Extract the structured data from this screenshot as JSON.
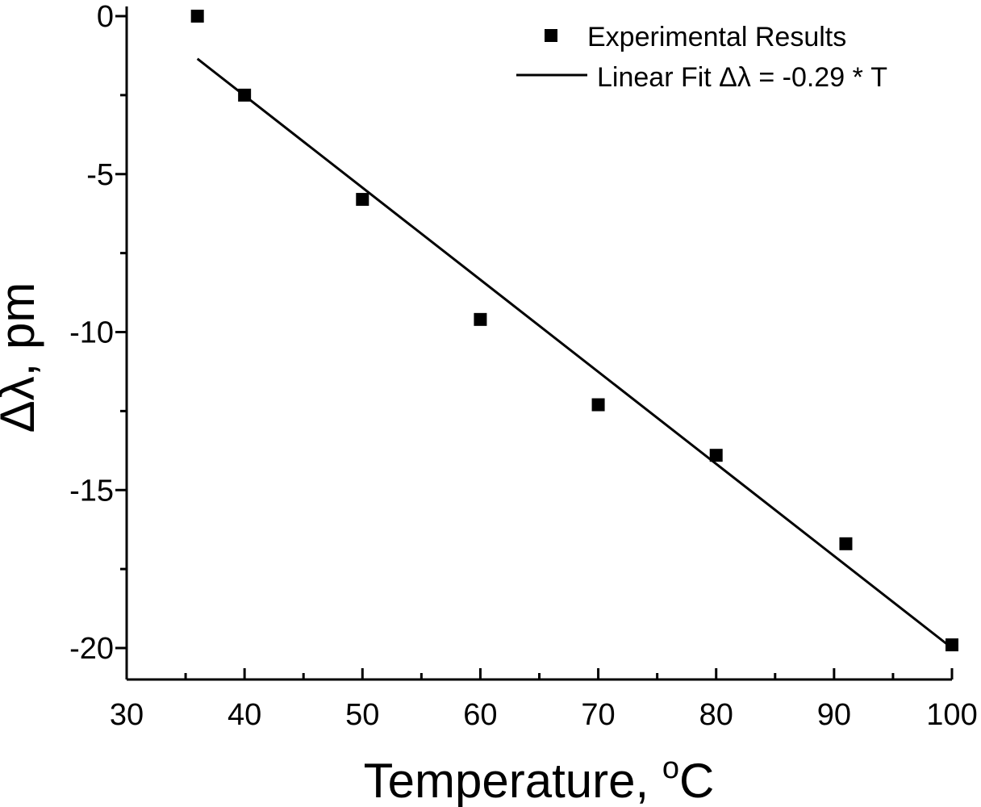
{
  "chart_data": {
    "type": "scatter",
    "title": "",
    "xlabel": "Temperature, ",
    "xlabel_unit_sup": "o",
    "xlabel_unit": "C",
    "ylabel": "Δλ, pm",
    "xlim": [
      30,
      100
    ],
    "ylim": [
      -21,
      0.5
    ],
    "xticks": [
      30,
      40,
      50,
      60,
      70,
      80,
      90,
      100
    ],
    "xtick_labels": [
      "30",
      "40",
      "50",
      "60",
      "70",
      "80",
      "90",
      "100"
    ],
    "yticks": [
      0,
      -5,
      -10,
      -15,
      -20
    ],
    "ytick_labels": [
      "0",
      "-5",
      "-10",
      "-15",
      "-20"
    ],
    "grid": false,
    "legend_position": "top-right",
    "series": [
      {
        "name": "Experimental Results",
        "kind": "scatter",
        "marker": "square",
        "x": [
          36,
          40,
          50,
          60,
          70,
          80,
          91,
          100
        ],
        "y": [
          0,
          -2.5,
          -5.8,
          -9.6,
          -12.3,
          -13.9,
          -16.7,
          -19.9
        ]
      },
      {
        "name": "Linear Fit Δλ = -0.29 * T",
        "kind": "line",
        "x": [
          36,
          100
        ],
        "y": [
          -1.35,
          -20.0
        ]
      }
    ],
    "colors": {
      "marks": "#000000",
      "background": "#ffffff"
    }
  }
}
